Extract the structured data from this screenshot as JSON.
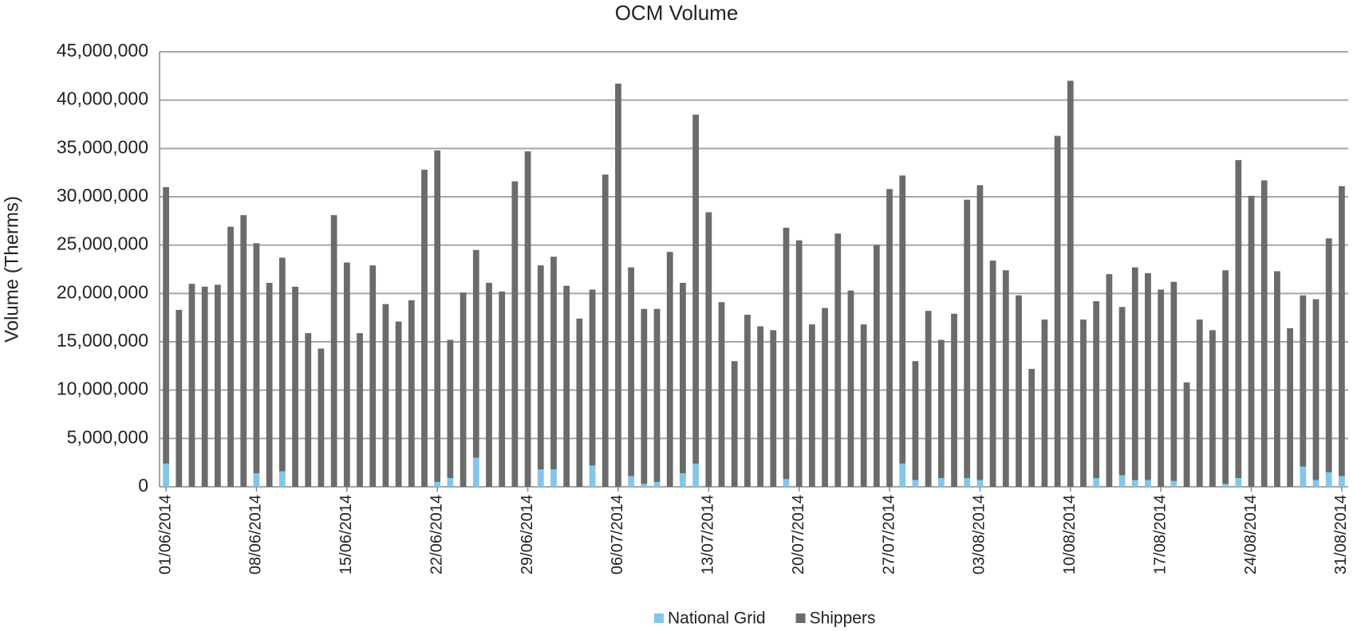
{
  "chart_data": {
    "type": "stacked-bar",
    "title": "OCM Volume",
    "y_label": "Volume (Therms)",
    "categories": [
      "01/06/2014",
      null,
      null,
      null,
      null,
      null,
      null,
      "08/06/2014",
      null,
      null,
      null,
      null,
      null,
      null,
      "15/06/2014",
      null,
      null,
      null,
      null,
      null,
      null,
      "22/06/2014",
      null,
      null,
      null,
      null,
      null,
      null,
      "29/06/2014",
      null,
      null,
      null,
      null,
      null,
      null,
      "06/07/2014",
      null,
      null,
      null,
      null,
      null,
      null,
      "13/07/2014",
      null,
      null,
      null,
      null,
      null,
      null,
      "20/07/2014",
      null,
      null,
      null,
      null,
      null,
      null,
      "27/07/2014",
      null,
      null,
      null,
      null,
      null,
      null,
      "03/08/2014",
      null,
      null,
      null,
      null,
      null,
      null,
      "10/08/2014",
      null,
      null,
      null,
      null,
      null,
      null,
      "17/08/2014",
      null,
      null,
      null,
      null,
      null,
      null,
      "24/08/2014",
      null,
      null,
      null,
      null,
      null,
      null,
      "31/08/2014"
    ],
    "series": [
      {
        "name": "National Grid",
        "color": "#85c5e8",
        "values": [
          2400000,
          0,
          0,
          0,
          0,
          0,
          0,
          1400000,
          0,
          1600000,
          0,
          0,
          0,
          0,
          0,
          0,
          0,
          0,
          0,
          0,
          0,
          500000,
          900000,
          0,
          3000000,
          0,
          0,
          0,
          0,
          1800000,
          1800000,
          0,
          0,
          2200000,
          0,
          0,
          1100000,
          300000,
          500000,
          0,
          1400000,
          2400000,
          0,
          0,
          0,
          0,
          0,
          0,
          800000,
          0,
          0,
          0,
          0,
          0,
          0,
          0,
          0,
          2400000,
          700000,
          0,
          900000,
          0,
          900000,
          700000,
          0,
          0,
          0,
          0,
          0,
          0,
          0,
          0,
          900000,
          0,
          1200000,
          700000,
          700000,
          0,
          600000,
          0,
          0,
          0,
          300000,
          900000,
          0,
          0,
          0,
          0,
          2100000,
          700000,
          1500000,
          1100000
        ]
      },
      {
        "name": "Shippers",
        "color": "#6b6b6b",
        "values": [
          28600000,
          18300000,
          21000000,
          20700000,
          20900000,
          26900000,
          28100000,
          23800000,
          21100000,
          22100000,
          20700000,
          15900000,
          14300000,
          28100000,
          23200000,
          15900000,
          22900000,
          18900000,
          17100000,
          19300000,
          32800000,
          34300000,
          14300000,
          20100000,
          21500000,
          21100000,
          20200000,
          31600000,
          34700000,
          21100000,
          22000000,
          20800000,
          17400000,
          18200000,
          32300000,
          41700000,
          21600000,
          18100000,
          17900000,
          24300000,
          19700000,
          36100000,
          28400000,
          19100000,
          13000000,
          17800000,
          16600000,
          16200000,
          26000000,
          25500000,
          16800000,
          18500000,
          26200000,
          20300000,
          16800000,
          25000000,
          30800000,
          29800000,
          12300000,
          18200000,
          14300000,
          17900000,
          28800000,
          30500000,
          23400000,
          22400000,
          19800000,
          12200000,
          17300000,
          36300000,
          42000000,
          17300000,
          18300000,
          22000000,
          17400000,
          22000000,
          21400000,
          20400000,
          20600000,
          10800000,
          17300000,
          16200000,
          22100000,
          32900000,
          30100000,
          31700000,
          22300000,
          16400000,
          17700000,
          18700000,
          24200000,
          30000000
        ]
      }
    ],
    "ylim": [
      0,
      45000000
    ],
    "yticks": [
      0,
      {
        "value": 5000000,
        "label": "5,000,000"
      },
      {
        "value": 10000000,
        "label": "10,000,000"
      },
      {
        "value": 15000000,
        "label": "15,000,000"
      },
      {
        "value": 20000000,
        "label": "20,000,000"
      },
      {
        "value": 25000000,
        "label": "25,000,000"
      },
      {
        "value": 30000000,
        "label": "30,000,000"
      },
      {
        "value": 35000000,
        "label": "35,000,000"
      },
      {
        "value": 40000000,
        "label": "40,000,000"
      },
      {
        "value": 45000000,
        "label": "45,000,000"
      }
    ],
    "grid": true,
    "legend": "bottom"
  }
}
